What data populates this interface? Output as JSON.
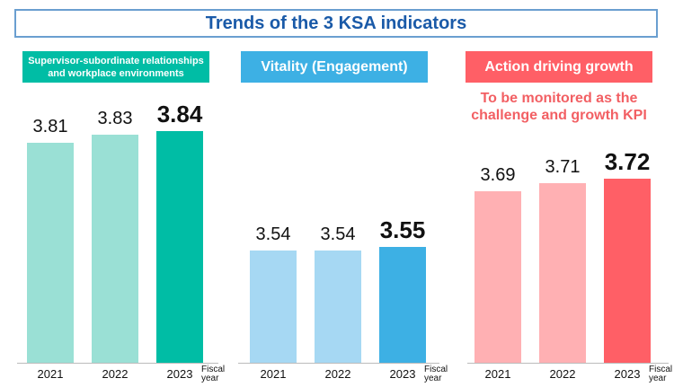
{
  "title": "Trends of the 3 KSA indicators",
  "panels": [
    {
      "label": "Supervisor-subordinate relationships and workplace environments",
      "color_light": "#9ae0d5",
      "color_dark": "#00bda5"
    },
    {
      "label": "Vitality (Engagement)",
      "color_light": "#a6d8f3",
      "color_dark": "#3db0e4"
    },
    {
      "label": "Action driving growth",
      "color_light": "#ffb0b3",
      "color_dark": "#ff5f66",
      "note": "To be monitored as the challenge and growth KPI"
    }
  ],
  "fiscal_label": "Fiscal year",
  "chart_data": [
    {
      "type": "bar",
      "title": "Supervisor-subordinate relationships and workplace environments",
      "categories": [
        "2021",
        "2022",
        "2023"
      ],
      "values": [
        3.81,
        3.83,
        3.84
      ],
      "xlabel": "Fiscal year"
    },
    {
      "type": "bar",
      "title": "Vitality (Engagement)",
      "categories": [
        "2021",
        "2022",
        "2023"
      ],
      "values": [
        3.54,
        3.54,
        3.55
      ],
      "xlabel": "Fiscal year"
    },
    {
      "type": "bar",
      "title": "Action driving growth",
      "categories": [
        "2021",
        "2022",
        "2023"
      ],
      "values": [
        3.69,
        3.71,
        3.72
      ],
      "xlabel": "Fiscal year"
    }
  ]
}
